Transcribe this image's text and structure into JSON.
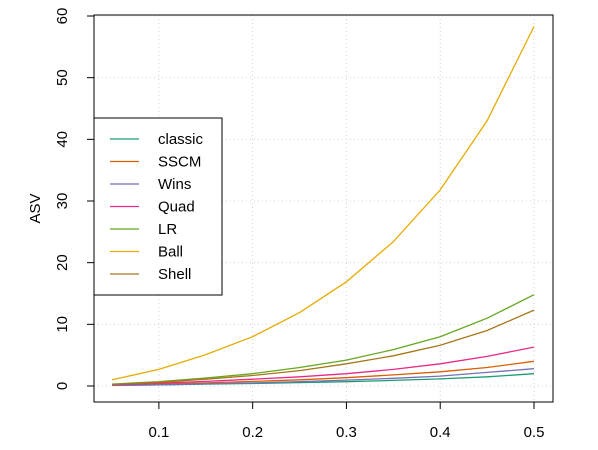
{
  "chart_data": {
    "type": "line",
    "title": "",
    "xlabel": "",
    "ylabel": "ASV",
    "xlim": [
      0.05,
      0.5
    ],
    "ylim": [
      0,
      60
    ],
    "x_ticks": [
      0.1,
      0.2,
      0.3,
      0.4,
      0.5
    ],
    "x_tick_labels": [
      "0.1",
      "0.2",
      "0.3",
      "0.4",
      "0.5"
    ],
    "y_ticks": [
      0,
      10,
      20,
      30,
      40,
      50,
      60
    ],
    "y_tick_labels": [
      "0",
      "10",
      "20",
      "30",
      "40",
      "50",
      "60"
    ],
    "grid": true,
    "legend_position": "middle-left",
    "x": [
      0.05,
      0.1,
      0.15,
      0.2,
      0.25,
      0.3,
      0.35,
      0.4,
      0.45,
      0.5
    ],
    "series": [
      {
        "name": "classic",
        "color": "#1b9e77",
        "values": [
          0.1,
          0.2,
          0.3,
          0.4,
          0.55,
          0.7,
          0.9,
          1.15,
          1.5,
          2.0
        ]
      },
      {
        "name": "SSCM",
        "color": "#d95f02",
        "values": [
          0.15,
          0.3,
          0.5,
          0.75,
          1.0,
          1.35,
          1.8,
          2.3,
          3.0,
          4.0
        ]
      },
      {
        "name": "Wins",
        "color": "#7570b3",
        "values": [
          0.1,
          0.2,
          0.35,
          0.5,
          0.7,
          0.95,
          1.25,
          1.6,
          2.2,
          2.8
        ]
      },
      {
        "name": "Quad",
        "color": "#e7298a",
        "values": [
          0.2,
          0.45,
          0.75,
          1.1,
          1.5,
          2.0,
          2.7,
          3.6,
          4.8,
          6.3
        ]
      },
      {
        "name": "LR",
        "color": "#66a61e",
        "values": [
          0.3,
          0.7,
          1.3,
          2.0,
          3.0,
          4.2,
          5.9,
          8.0,
          11.0,
          14.8
        ]
      },
      {
        "name": "Ball",
        "color": "#e6ab02",
        "values": [
          1.0,
          2.7,
          5.1,
          8.0,
          11.9,
          16.9,
          23.4,
          31.8,
          43.0,
          58.3
        ]
      },
      {
        "name": "Shell",
        "color": "#a6761d",
        "values": [
          0.25,
          0.6,
          1.1,
          1.7,
          2.5,
          3.6,
          4.9,
          6.6,
          9.0,
          12.3
        ]
      }
    ]
  }
}
